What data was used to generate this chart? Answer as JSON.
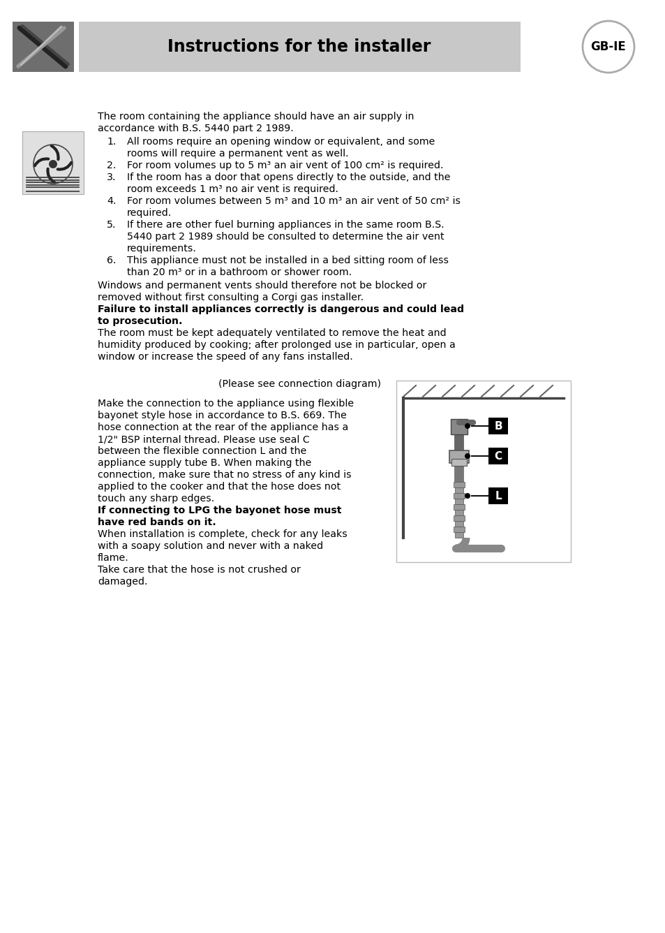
{
  "title": "Instructions for the installer",
  "gb_ie_label": "GB-IE",
  "header_bg": "#c8c8c8",
  "header_icon_bg": "#6e6e6e",
  "page_bg": "#ffffff",
  "text_color": "#000000",
  "font_size_body": 10.2,
  "font_size_title": 17,
  "para1_lines": [
    "The room containing the appliance should have an air supply in",
    "accordance with B.S. 5440 part 2 1989."
  ],
  "item1_lines": [
    "All rooms require an opening window or equivalent, and some",
    "rooms will require a permanent vent as well."
  ],
  "item2_lines": [
    "For room volumes up to 5 m³ an air vent of 100 cm² is required."
  ],
  "item3_lines": [
    "If the room has a door that opens directly to the outside, and the",
    "room exceeds 1 m³ no air vent is required."
  ],
  "item4_lines": [
    "For room volumes between 5 m³ and 10 m³ an air vent of 50 cm² is",
    "required."
  ],
  "item5_lines": [
    "If there are other fuel burning appliances in the same room B.S.",
    "5440 part 2 1989 should be consulted to determine the air vent",
    "requirements."
  ],
  "item6_lines": [
    "This appliance must not be installed in a bed sitting room of less",
    "than 20 m³ or in a bathroom or shower room."
  ],
  "after_lines": [
    "Windows and permanent vents should therefore not be blocked or",
    "removed without first consulting a Corgi gas installer."
  ],
  "bold_lines": [
    "Failure to install appliances correctly is dangerous and could lead",
    "to prosecution."
  ],
  "end_lines": [
    "The room must be kept adequately ventilated to remove the heat and",
    "humidity produced by cooking; after prolonged use in particular, open a",
    "window or increase the speed of any fans installed."
  ],
  "center_line": "(Please see connection diagram)",
  "conn_lines": [
    "Make the connection to the appliance using flexible",
    "bayonet style hose in accordance to B.S. 669. The",
    "hose connection at the rear of the appliance has a",
    "1/2\" BSP internal thread. Please use seal C",
    "between the flexible connection L and the",
    "appliance supply tube B. When making the",
    "connection, make sure that no stress of any kind is",
    "applied to the cooker and that the hose does not",
    "touch any sharp edges."
  ],
  "lpg_lines": [
    "If connecting to LPG the bayonet hose must",
    "have red bands on it."
  ],
  "inst_lines": [
    "When installation is complete, check for any leaks",
    "with a soapy solution and never with a naked",
    "flame."
  ],
  "care_lines": [
    "Take care that the hose is not crushed or",
    "damaged."
  ]
}
